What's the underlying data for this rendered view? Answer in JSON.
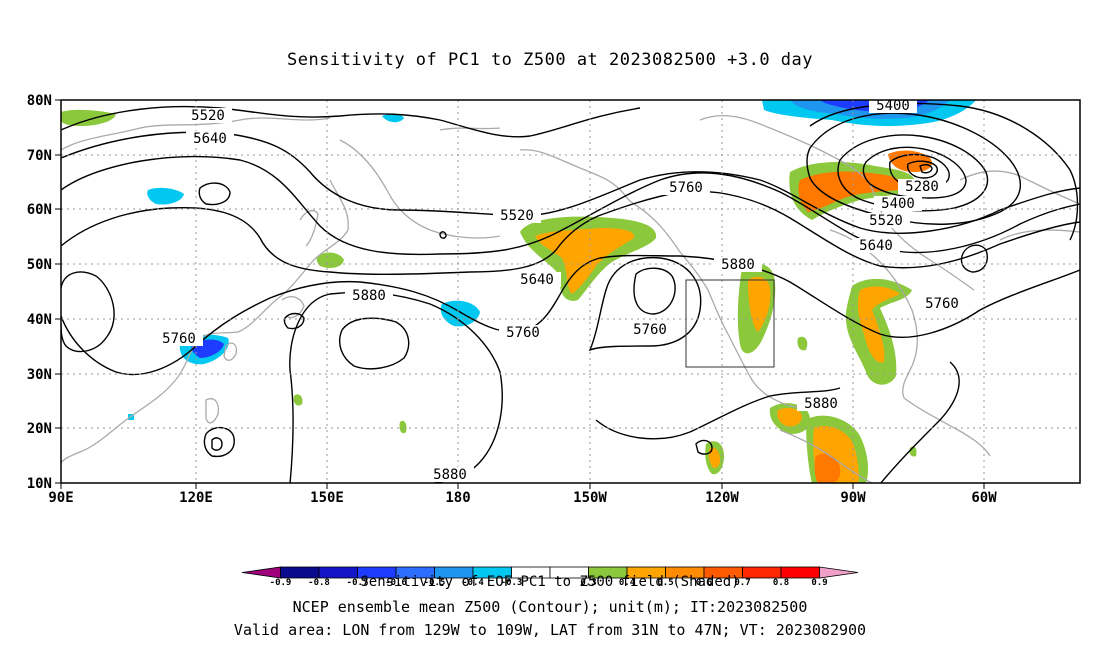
{
  "title": "Sensitivity of PC1 to Z500 at 2023082500 +3.0 day",
  "lat_labels": [
    "80N",
    "70N",
    "60N",
    "50N",
    "40N",
    "30N",
    "20N",
    "10N"
  ],
  "lon_labels": [
    "90E",
    "120E",
    "150E",
    "180",
    "150W",
    "120W",
    "90W",
    "60W"
  ],
  "contour_labels": [
    "5520",
    "5640",
    "5520",
    "5760",
    "5880",
    "5760",
    "5640",
    "5760",
    "5880",
    "5760",
    "5880",
    "5880",
    "5400",
    "5280",
    "5400",
    "5520",
    "5640",
    "5760"
  ],
  "colorbar": {
    "colors": [
      "#a0007c",
      "#0a0a8c",
      "#1414c8",
      "#1e3cff",
      "#2e6eff",
      "#1e96f0",
      "#00c8f0",
      "#ffffff",
      "#ffffff",
      "#8cc83c",
      "#ffa500",
      "#ff8c00",
      "#ff5a00",
      "#ff2800",
      "#ff0000",
      "#f0a0c8"
    ],
    "tick_labels": [
      "-0.9",
      "-0.8",
      "-0.7",
      "-0.6",
      "-0.5",
      "-0.4",
      "-0.3",
      "0.3",
      "0.4",
      "0.5",
      "0.6",
      "0.7",
      "0.8",
      "0.9"
    ]
  },
  "captions": {
    "line1": "Sensitivity of EOF PC1 to Z500 field (Shaded)",
    "line2": "NCEP ensemble mean Z500 (Contour); unit(m); IT:2023082500",
    "line3": "Valid area: LON from 129W to 109W, LAT from 31N to 47N; VT: 2023082900"
  },
  "valid_area": {
    "lon": [
      -129,
      -109
    ],
    "lat": [
      31,
      47
    ]
  },
  "shading_colors": {
    "green": "#8cc83c",
    "orange": "#ffa500",
    "dark_orange": "#ff7800",
    "cyan": "#00c8f0",
    "blue": "#1e3cff",
    "dark_blue": "#1414c8"
  }
}
